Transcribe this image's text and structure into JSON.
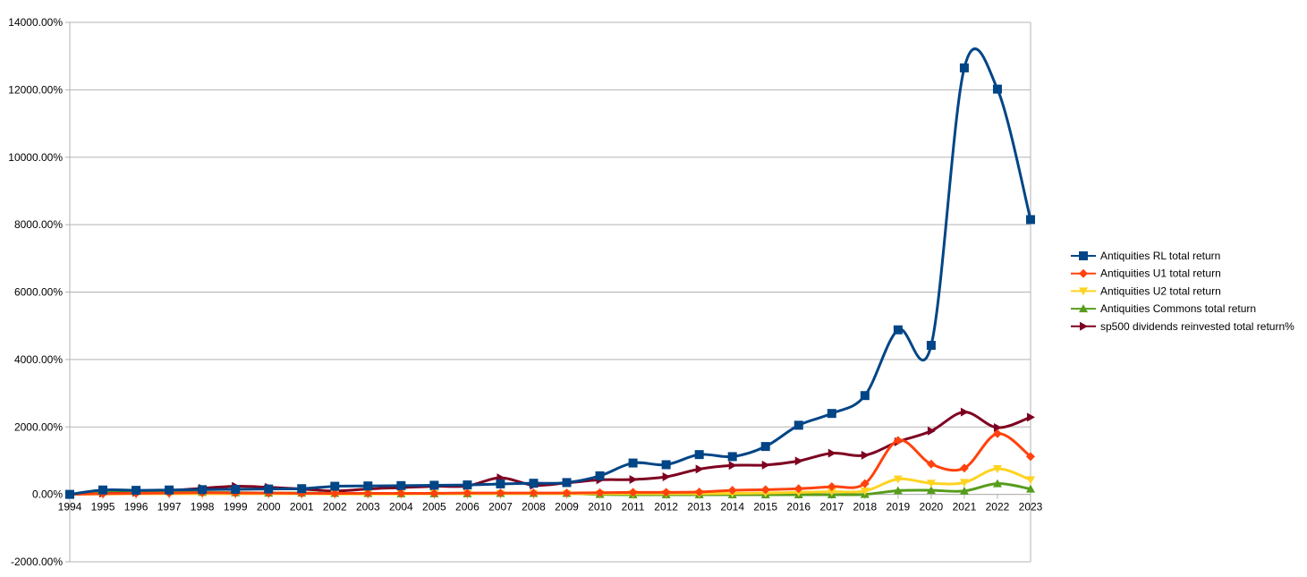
{
  "chart_data": {
    "type": "line",
    "title": "",
    "xlabel": "",
    "ylabel": "",
    "categories": [
      "1994",
      "1995",
      "1996",
      "1997",
      "1998",
      "1999",
      "2000",
      "2001",
      "2002",
      "2003",
      "2004",
      "2005",
      "2006",
      "2007",
      "2008",
      "2009",
      "2010",
      "2011",
      "2012",
      "2013",
      "2014",
      "2015",
      "2016",
      "2017",
      "2018",
      "2019",
      "2020",
      "2021",
      "2022",
      "2023"
    ],
    "ylim": [
      -2000,
      14000
    ],
    "yticks": [
      -2000,
      0,
      2000,
      4000,
      6000,
      8000,
      10000,
      12000,
      14000
    ],
    "ytick_labels": [
      "-2000.00%",
      "0.00%",
      "2000.00%",
      "4000.00%",
      "6000.00%",
      "8000.00%",
      "10000.00%",
      "12000.00%",
      "14000.00%"
    ],
    "grid": "horizontal",
    "smoothed": true,
    "legend_position": "right",
    "series": [
      {
        "name": "Antiquities RL total return",
        "color": "#004586",
        "marker": "square",
        "values": [
          0,
          130,
          120,
          130,
          140,
          150,
          160,
          170,
          240,
          250,
          260,
          270,
          280,
          310,
          330,
          350,
          550,
          930,
          880,
          1180,
          1120,
          1420,
          2050,
          2400,
          2930,
          4880,
          4420,
          12650,
          12020,
          8150
        ]
      },
      {
        "name": "Antiquities U1 total return",
        "color": "#ff420e",
        "marker": "diamond",
        "values": [
          0,
          20,
          30,
          40,
          50,
          40,
          40,
          30,
          30,
          30,
          30,
          30,
          40,
          40,
          40,
          40,
          50,
          60,
          60,
          70,
          120,
          140,
          170,
          230,
          320,
          1600,
          900,
          780,
          1800,
          1120
        ]
      },
      {
        "name": "Antiquities U2 total return",
        "color": "#ffd320",
        "marker": "triangle-down",
        "values": [
          0,
          10,
          20,
          20,
          20,
          20,
          20,
          20,
          10,
          10,
          10,
          20,
          20,
          20,
          20,
          20,
          20,
          20,
          20,
          20,
          30,
          40,
          60,
          80,
          100,
          450,
          330,
          350,
          760,
          430
        ]
      },
      {
        "name": "Antiquities Commons  total return",
        "color": "#579d1c",
        "marker": "triangle-up",
        "values": [
          0,
          100,
          110,
          100,
          60,
          50,
          40,
          40,
          30,
          30,
          20,
          20,
          20,
          30,
          30,
          30,
          0,
          -10,
          -10,
          -10,
          -10,
          -10,
          -10,
          -10,
          0,
          110,
          120,
          100,
          320,
          160
        ]
      },
      {
        "name": "sp500 dividends reinvested total return%",
        "color": "#7e0021",
        "marker": "triangle-right",
        "values": [
          0,
          40,
          60,
          110,
          180,
          240,
          210,
          160,
          100,
          160,
          200,
          240,
          250,
          490,
          270,
          340,
          430,
          440,
          520,
          750,
          860,
          870,
          990,
          1220,
          1160,
          1560,
          1880,
          2440,
          1980,
          2290
        ]
      }
    ]
  }
}
